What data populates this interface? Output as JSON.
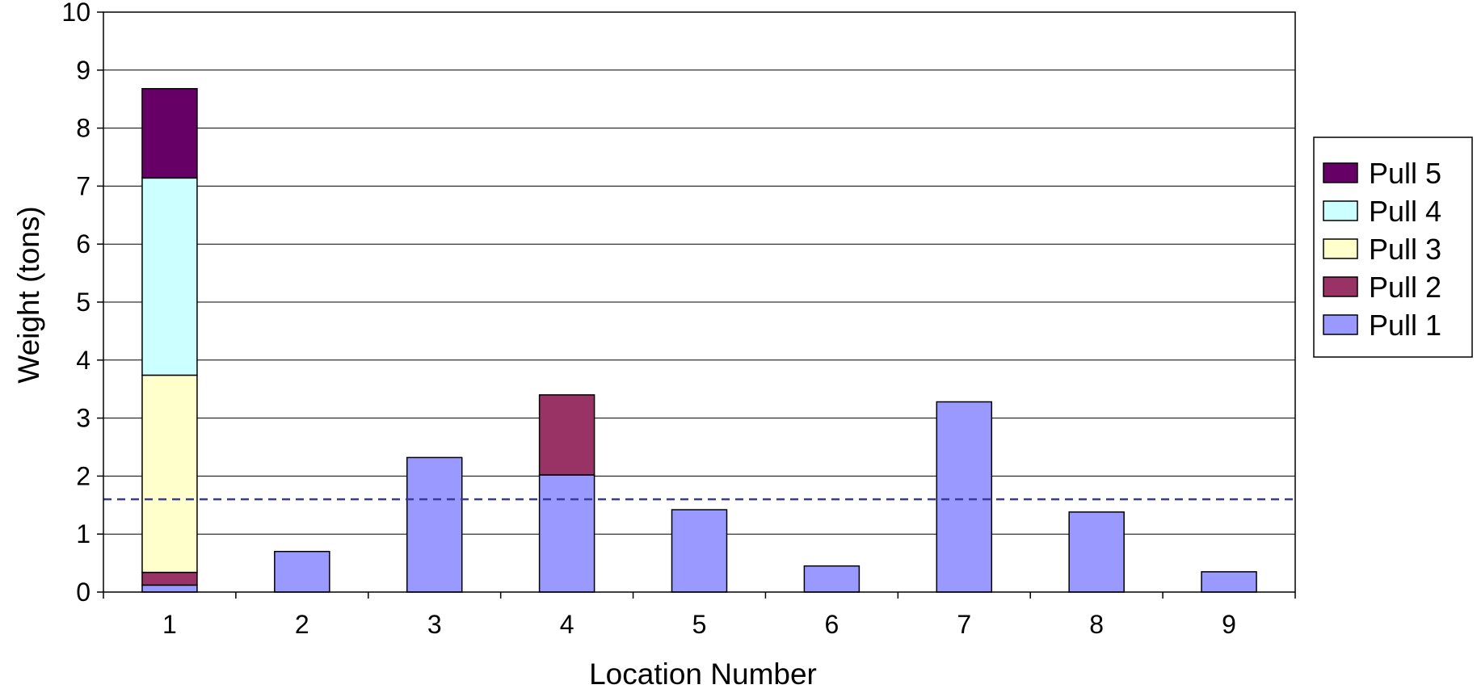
{
  "chart_data": {
    "type": "bar",
    "stacked": true,
    "title": "",
    "xlabel": "Location Number",
    "ylabel": "Weight (tons)",
    "ylim": [
      0,
      10
    ],
    "yticks": [
      "0",
      "1",
      "2",
      "3",
      "4",
      "5",
      "6",
      "7",
      "8",
      "9",
      "10"
    ],
    "categories": [
      "1",
      "2",
      "3",
      "4",
      "5",
      "6",
      "7",
      "8",
      "9"
    ],
    "grid": true,
    "legend_position": "right",
    "reference_line": {
      "y": 1.6,
      "style": "dashed",
      "color": "#3b3b98"
    },
    "series": [
      {
        "name": "Pull 1",
        "color": "#9999ff",
        "values": [
          0.12,
          0.7,
          2.32,
          2.02,
          1.42,
          0.45,
          3.28,
          1.38,
          0.35
        ]
      },
      {
        "name": "Pull 2",
        "color": "#993366",
        "values": [
          0.22,
          0,
          0,
          1.38,
          0,
          0,
          0,
          0,
          0
        ]
      },
      {
        "name": "Pull 3",
        "color": "#ffffcc",
        "values": [
          3.4,
          0,
          0,
          0,
          0,
          0,
          0,
          0,
          0
        ]
      },
      {
        "name": "Pull 4",
        "color": "#ccffff",
        "values": [
          3.4,
          0,
          0,
          0,
          0,
          0,
          0,
          0,
          0
        ]
      },
      {
        "name": "Pull 5",
        "color": "#660066",
        "values": [
          1.54,
          0,
          0,
          0,
          0,
          0,
          0,
          0,
          0
        ]
      }
    ]
  }
}
